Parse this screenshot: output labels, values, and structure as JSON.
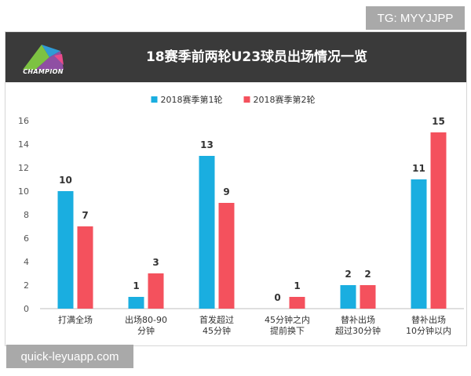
{
  "watermark_top": "TG: MYYJJPP",
  "watermark_bottom": "quick-leyuapp.com",
  "header": {
    "title": "18赛季前两轮U23球员出场情况一览",
    "logo_text": "CHAMPION"
  },
  "colors": {
    "series1": "#1aaee0",
    "series2": "#f4515d",
    "header_bg": "#3a3a3a"
  },
  "chart_data": {
    "type": "bar",
    "title": "18赛季前两轮U23球员出场情况一览",
    "categories": [
      [
        "打满全场"
      ],
      [
        "出场80-90",
        "分钟"
      ],
      [
        "首发超过",
        "45分钟"
      ],
      [
        "45分钟之内",
        "提前换下"
      ],
      [
        "替补出场",
        "超过30分钟"
      ],
      [
        "替补出场",
        "10分钟以内"
      ]
    ],
    "series": [
      {
        "name": "2018赛季第1轮",
        "values": [
          10,
          1,
          13,
          0,
          2,
          11
        ]
      },
      {
        "name": "2018赛季第2轮",
        "values": [
          7,
          3,
          9,
          1,
          2,
          15
        ]
      }
    ],
    "ylim": [
      0,
      16
    ],
    "yticks": [
      0,
      2,
      4,
      6,
      8,
      10,
      12,
      14,
      16
    ],
    "grid": false,
    "legend": "top-center"
  }
}
